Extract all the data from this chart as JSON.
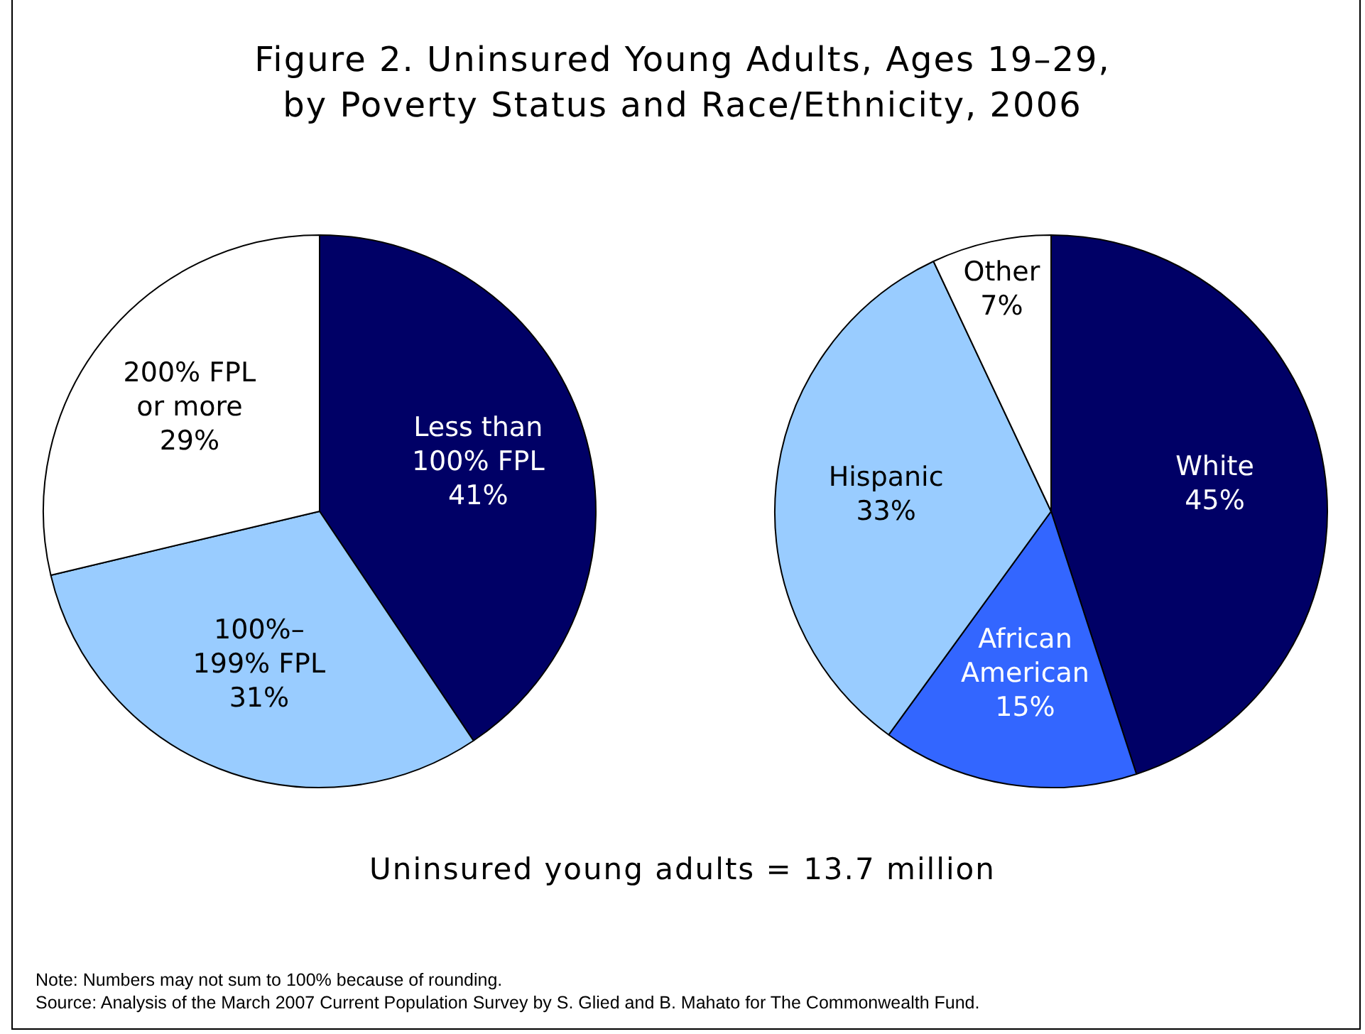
{
  "chart_data": [
    {
      "type": "pie",
      "title": "Figure 2. Uninsured Young Adults, Ages 19–29, by Poverty Status and Race/Ethnicity, 2006",
      "categories": [
        "Less than 100% FPL",
        "100%–199% FPL",
        "200% FPL or more"
      ],
      "values": [
        41,
        31,
        29
      ],
      "colors": [
        "#000066",
        "#99ccff",
        "#ffffff"
      ],
      "value_labels": [
        "41%",
        "31%",
        "29%"
      ],
      "legend": false,
      "annotations": [
        "Uninsured young adults = 13.7 million",
        "Note: Numbers may not sum to 100% because of rounding.",
        "Source: Analysis of the March 2007 Current Population Survey by S. Glied and B. Mahato for The Commonwealth Fund."
      ]
    },
    {
      "type": "pie",
      "categories": [
        "White",
        "African American",
        "Hispanic",
        "Other"
      ],
      "values": [
        45,
        15,
        33,
        7
      ],
      "colors": [
        "#000066",
        "#3366ff",
        "#99ccff",
        "#ffffff"
      ],
      "value_labels": [
        "45%",
        "15%",
        "33%",
        "7%"
      ],
      "legend": false
    }
  ]
}
